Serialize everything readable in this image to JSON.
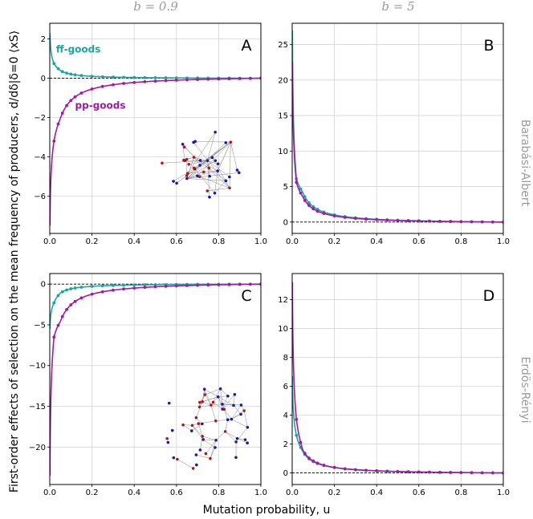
{
  "ylabel": "First-order effects of selection on the mean frequency of producers, d/dδ|δ=0 ⟨xS⟩",
  "xlabel": "Mutation probability, u",
  "columns": [
    "b = 0.9",
    "b = 5"
  ],
  "rows": [
    "Barabási-Albert",
    "Erdös-Rényi"
  ],
  "colors": {
    "ff": "#1ea3a3",
    "pp": "#a01aa4",
    "node_blue": "#1a1aa8",
    "node_red": "#b01818"
  },
  "chart_data": [
    {
      "panel": "A",
      "type": "line",
      "column": "b = 0.9",
      "row": "Barabási-Albert",
      "xlim": [
        0,
        1
      ],
      "ylim": [
        -7.9,
        2.8
      ],
      "xticks": [
        0.0,
        0.2,
        0.4,
        0.6,
        0.8,
        1.0
      ],
      "yticks": [
        2,
        0,
        -2,
        -4,
        -6
      ],
      "xtick_labels": [
        "0.0",
        "0.2",
        "0.4",
        "0.6",
        "0.8",
        "1.0"
      ],
      "ytick_labels": [
        "2",
        "0",
        "−2",
        "−4",
        "−6"
      ],
      "hline": 0,
      "series_labels": [
        {
          "name": "ff-goods",
          "series": "ff",
          "anchor": [
            0.03,
            1.3
          ]
        },
        {
          "name": "pp-goods",
          "series": "pp",
          "anchor": [
            0.12,
            -1.55
          ]
        }
      ],
      "series": [
        {
          "name": "ff-goods",
          "key": "ff",
          "x0": 0.001,
          "y0": 2.3,
          "a": 0.055,
          "tau": 0.012,
          "x1": 0.02,
          "y1": 0.75,
          "x2": 0.05,
          "y2": 0.4,
          "points_x": [
            0.02,
            0.04,
            0.06,
            0.08,
            0.1,
            0.12,
            0.15,
            0.2,
            0.25,
            0.3,
            0.35,
            0.4,
            0.45,
            0.5,
            0.55,
            0.6,
            0.65,
            0.7,
            0.75,
            0.8,
            0.85,
            0.9,
            0.95,
            1.0
          ]
        },
        {
          "name": "pp-goods",
          "key": "pp",
          "x0": 0.001,
          "y0": -7.5,
          "a": 0.165,
          "tau": 0.02,
          "x1": 0.02,
          "y1": -3.2,
          "x2": 0.05,
          "y2": -2.05,
          "points_x": [
            0.02,
            0.04,
            0.06,
            0.08,
            0.1,
            0.12,
            0.15,
            0.2,
            0.25,
            0.3,
            0.35,
            0.4,
            0.45,
            0.5,
            0.55,
            0.6,
            0.65,
            0.7,
            0.75,
            0.8,
            0.85,
            0.9,
            0.95,
            1.0
          ]
        }
      ],
      "inset": "ba"
    },
    {
      "panel": "B",
      "type": "line",
      "column": "b = 5",
      "row": "Barabási-Albert",
      "xlim": [
        0,
        1
      ],
      "ylim": [
        -1.6,
        28
      ],
      "xticks": [
        0.0,
        0.2,
        0.4,
        0.6,
        0.8,
        1.0
      ],
      "yticks": [
        25,
        20,
        15,
        10,
        5,
        0
      ],
      "xtick_labels": [
        "0.0",
        "0.2",
        "0.4",
        "0.6",
        "0.8",
        "1.0"
      ],
      "ytick_labels": [
        "25",
        "20",
        "15",
        "10",
        "5",
        "0"
      ],
      "hline": 0,
      "series_labels": [],
      "series": [
        {
          "name": "ff-goods",
          "key": "ff",
          "x0": 0.001,
          "y0": 27.0,
          "a": 0.3,
          "tau": 0.01,
          "x1": 0.02,
          "y1": 6.1,
          "x2": 0.05,
          "y2": 4.2,
          "points_x": [
            0.02,
            0.04,
            0.06,
            0.08,
            0.1,
            0.12,
            0.15,
            0.2,
            0.25,
            0.3,
            0.35,
            0.4,
            0.45,
            0.5,
            0.55,
            0.6,
            0.65,
            0.7,
            0.75,
            0.8,
            0.85,
            0.9,
            0.95,
            1.0
          ]
        },
        {
          "name": "pp-goods",
          "key": "pp",
          "x0": 0.001,
          "y0": 22.5,
          "a": 0.21,
          "tau": 0.01,
          "x1": 0.02,
          "y1": 5.6,
          "x2": 0.05,
          "y2": 3.6,
          "points_x": [
            0.02,
            0.04,
            0.06,
            0.08,
            0.1,
            0.12,
            0.15,
            0.2,
            0.25,
            0.3,
            0.35,
            0.4,
            0.45,
            0.5,
            0.55,
            0.6,
            0.65,
            0.7,
            0.75,
            0.8,
            0.85,
            0.9,
            0.95,
            1.0
          ]
        }
      ],
      "inset": null
    },
    {
      "panel": "C",
      "type": "line",
      "column": "b = 0.9",
      "row": "Erdös-Rényi",
      "xlim": [
        0,
        1
      ],
      "ylim": [
        -24.6,
        1.3
      ],
      "xticks": [
        0.0,
        0.2,
        0.4,
        0.6,
        0.8,
        1.0
      ],
      "yticks": [
        0,
        -5,
        -10,
        -15,
        -20
      ],
      "xtick_labels": [
        "0.0",
        "0.2",
        "0.4",
        "0.6",
        "0.8",
        "1.0"
      ],
      "ytick_labels": [
        "0",
        "−5",
        "−10",
        "−15",
        "−20"
      ],
      "hline": 0,
      "series_labels": [],
      "series": [
        {
          "name": "ff-goods",
          "key": "ff",
          "x0": 0.001,
          "y0": -5.5,
          "a": 0.1,
          "tau": 0.012,
          "x1": 0.02,
          "y1": -2.3,
          "x2": 0.05,
          "y2": -1.1,
          "points_x": [
            0.02,
            0.04,
            0.06,
            0.08,
            0.1,
            0.12,
            0.15,
            0.2,
            0.25,
            0.3,
            0.35,
            0.4,
            0.45,
            0.5,
            0.55,
            0.6,
            0.65,
            0.7,
            0.75,
            0.8,
            0.85,
            0.9,
            0.95,
            1.0
          ]
        },
        {
          "name": "pp-goods",
          "key": "pp",
          "x0": 0.001,
          "y0": -23.5,
          "a": 0.38,
          "tau": 0.02,
          "x1": 0.02,
          "y1": -6.5,
          "x2": 0.05,
          "y2": -4.6,
          "points_x": [
            0.02,
            0.04,
            0.06,
            0.08,
            0.1,
            0.12,
            0.15,
            0.2,
            0.25,
            0.3,
            0.35,
            0.4,
            0.45,
            0.5,
            0.55,
            0.6,
            0.65,
            0.7,
            0.75,
            0.8,
            0.85,
            0.9,
            0.95,
            1.0
          ]
        }
      ],
      "inset": "er"
    },
    {
      "panel": "D",
      "type": "line",
      "column": "b = 5",
      "row": "Erdös-Rényi",
      "xlim": [
        0,
        1
      ],
      "ylim": [
        -0.8,
        13.8
      ],
      "xticks": [
        0.0,
        0.2,
        0.4,
        0.6,
        0.8,
        1.0
      ],
      "yticks": [
        12,
        10,
        8,
        6,
        4,
        2,
        0
      ],
      "xtick_labels": [
        "0.0",
        "0.2",
        "0.4",
        "0.6",
        "0.8",
        "1.0"
      ],
      "ytick_labels": [
        "12",
        "10",
        "8",
        "6",
        "4",
        "2",
        "0"
      ],
      "hline": 0,
      "series_labels": [],
      "series": [
        {
          "name": "ff-goods",
          "key": "ff",
          "x0": 0.001,
          "y0": 6.7,
          "a": 0.08,
          "tau": 0.012,
          "x1": 0.02,
          "y1": 2.6,
          "x2": 0.05,
          "y2": 1.5,
          "points_x": [
            0.02,
            0.04,
            0.06,
            0.08,
            0.1,
            0.12,
            0.15,
            0.2,
            0.25,
            0.3,
            0.35,
            0.4,
            0.45,
            0.5,
            0.55,
            0.6,
            0.65,
            0.7,
            0.75,
            0.8,
            0.85,
            0.9,
            0.95,
            1.0
          ]
        },
        {
          "name": "pp-goods",
          "key": "pp",
          "x0": 0.001,
          "y0": 13.2,
          "a": 0.05,
          "tau": 0.01,
          "x1": 0.02,
          "y1": 3.7,
          "x2": 0.05,
          "y2": 1.6,
          "points_x": [
            0.02,
            0.04,
            0.06,
            0.08,
            0.1,
            0.12,
            0.15,
            0.2,
            0.25,
            0.3,
            0.35,
            0.4,
            0.45,
            0.5,
            0.55,
            0.6,
            0.65,
            0.7,
            0.75,
            0.8,
            0.85,
            0.9,
            0.95,
            1.0
          ]
        }
      ],
      "inset": null
    }
  ]
}
